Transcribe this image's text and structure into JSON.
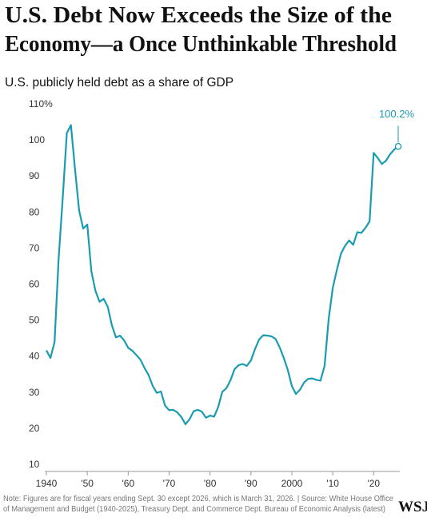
{
  "chart_data": {
    "type": "line",
    "title": [
      "U.S. Debt Now Exceeds the Size of the",
      "Economy—a Once Unthinkable Threshold"
    ],
    "subtitle": "U.S. publicly held debt as a share of GDP",
    "x": [
      1940,
      1941,
      1942,
      1943,
      1944,
      1945,
      1946,
      1947,
      1948,
      1949,
      1950,
      1951,
      1952,
      1953,
      1954,
      1955,
      1956,
      1957,
      1958,
      1959,
      1960,
      1961,
      1962,
      1963,
      1964,
      1965,
      1966,
      1967,
      1968,
      1969,
      1970,
      1971,
      1972,
      1973,
      1974,
      1975,
      1976,
      1977,
      1978,
      1979,
      1980,
      1981,
      1982,
      1983,
      1984,
      1985,
      1986,
      1987,
      1988,
      1989,
      1990,
      1991,
      1992,
      1993,
      1994,
      1995,
      1996,
      1997,
      1998,
      1999,
      2000,
      2001,
      2002,
      2003,
      2004,
      2005,
      2006,
      2007,
      2008,
      2009,
      2010,
      2011,
      2012,
      2013,
      2014,
      2015,
      2016,
      2017,
      2018,
      2019,
      2020,
      2021,
      2022,
      2023,
      2024,
      2025,
      2026
    ],
    "series": [
      {
        "name": "Publicly held debt",
        "color": "#1a9cb0",
        "values": [
          43.6,
          41.5,
          45.9,
          69.2,
          86.0,
          103.9,
          106.1,
          93.9,
          82.4,
          77.4,
          78.5,
          65.5,
          60.1,
          57.1,
          57.9,
          55.7,
          50.6,
          47.2,
          47.7,
          46.4,
          44.3,
          43.5,
          42.3,
          41.0,
          38.7,
          36.7,
          33.7,
          31.8,
          32.2,
          28.3,
          27.0,
          27.1,
          26.4,
          25.1,
          23.1,
          24.5,
          26.7,
          27.1,
          26.6,
          24.9,
          25.5,
          25.2,
          27.9,
          32.1,
          33.1,
          35.3,
          38.4,
          39.5,
          39.8,
          39.3,
          40.8,
          44.0,
          46.6,
          47.8,
          47.7,
          47.5,
          46.8,
          44.5,
          41.6,
          38.2,
          33.7,
          31.5,
          32.7,
          34.7,
          35.7,
          35.8,
          35.4,
          35.2,
          39.3,
          52.3,
          60.9,
          65.9,
          70.4,
          72.6,
          74.1,
          72.9,
          76.4,
          76.2,
          77.6,
          79.4,
          98.4,
          97.0,
          95.3,
          96.2,
          98.0,
          99.3,
          100.2
        ]
      }
    ],
    "xlim": [
      1940,
      2026
    ],
    "xticks": [
      {
        "value": 1940,
        "label": "1940"
      },
      {
        "value": 1950,
        "label": "'50"
      },
      {
        "value": 1960,
        "label": "'60"
      },
      {
        "value": 1970,
        "label": "'70"
      },
      {
        "value": 1980,
        "label": "'80"
      },
      {
        "value": 1990,
        "label": "'90"
      },
      {
        "value": 2000,
        "label": "2000"
      },
      {
        "value": 2010,
        "label": "'10"
      },
      {
        "value": 2020,
        "label": "'20"
      }
    ],
    "ylim": [
      10,
      110
    ],
    "yticks": [
      10,
      20,
      30,
      40,
      50,
      60,
      70,
      80,
      90,
      100,
      {
        "value": 110,
        "label": "110%"
      }
    ],
    "grid": false,
    "annotations": [
      {
        "x": 2026,
        "y": 100.2,
        "label": "100.2%"
      }
    ],
    "note": [
      "Note: Figures are for fiscal years ending Sept. 30 except 2026, which is March 31, 2026. | Source: White House Office",
      "of Management and Budget (1940-2025), Treasury Dept. and Commerce Dept. Bureau of Economic Analysis (latest)"
    ],
    "logo": "WSJ"
  }
}
